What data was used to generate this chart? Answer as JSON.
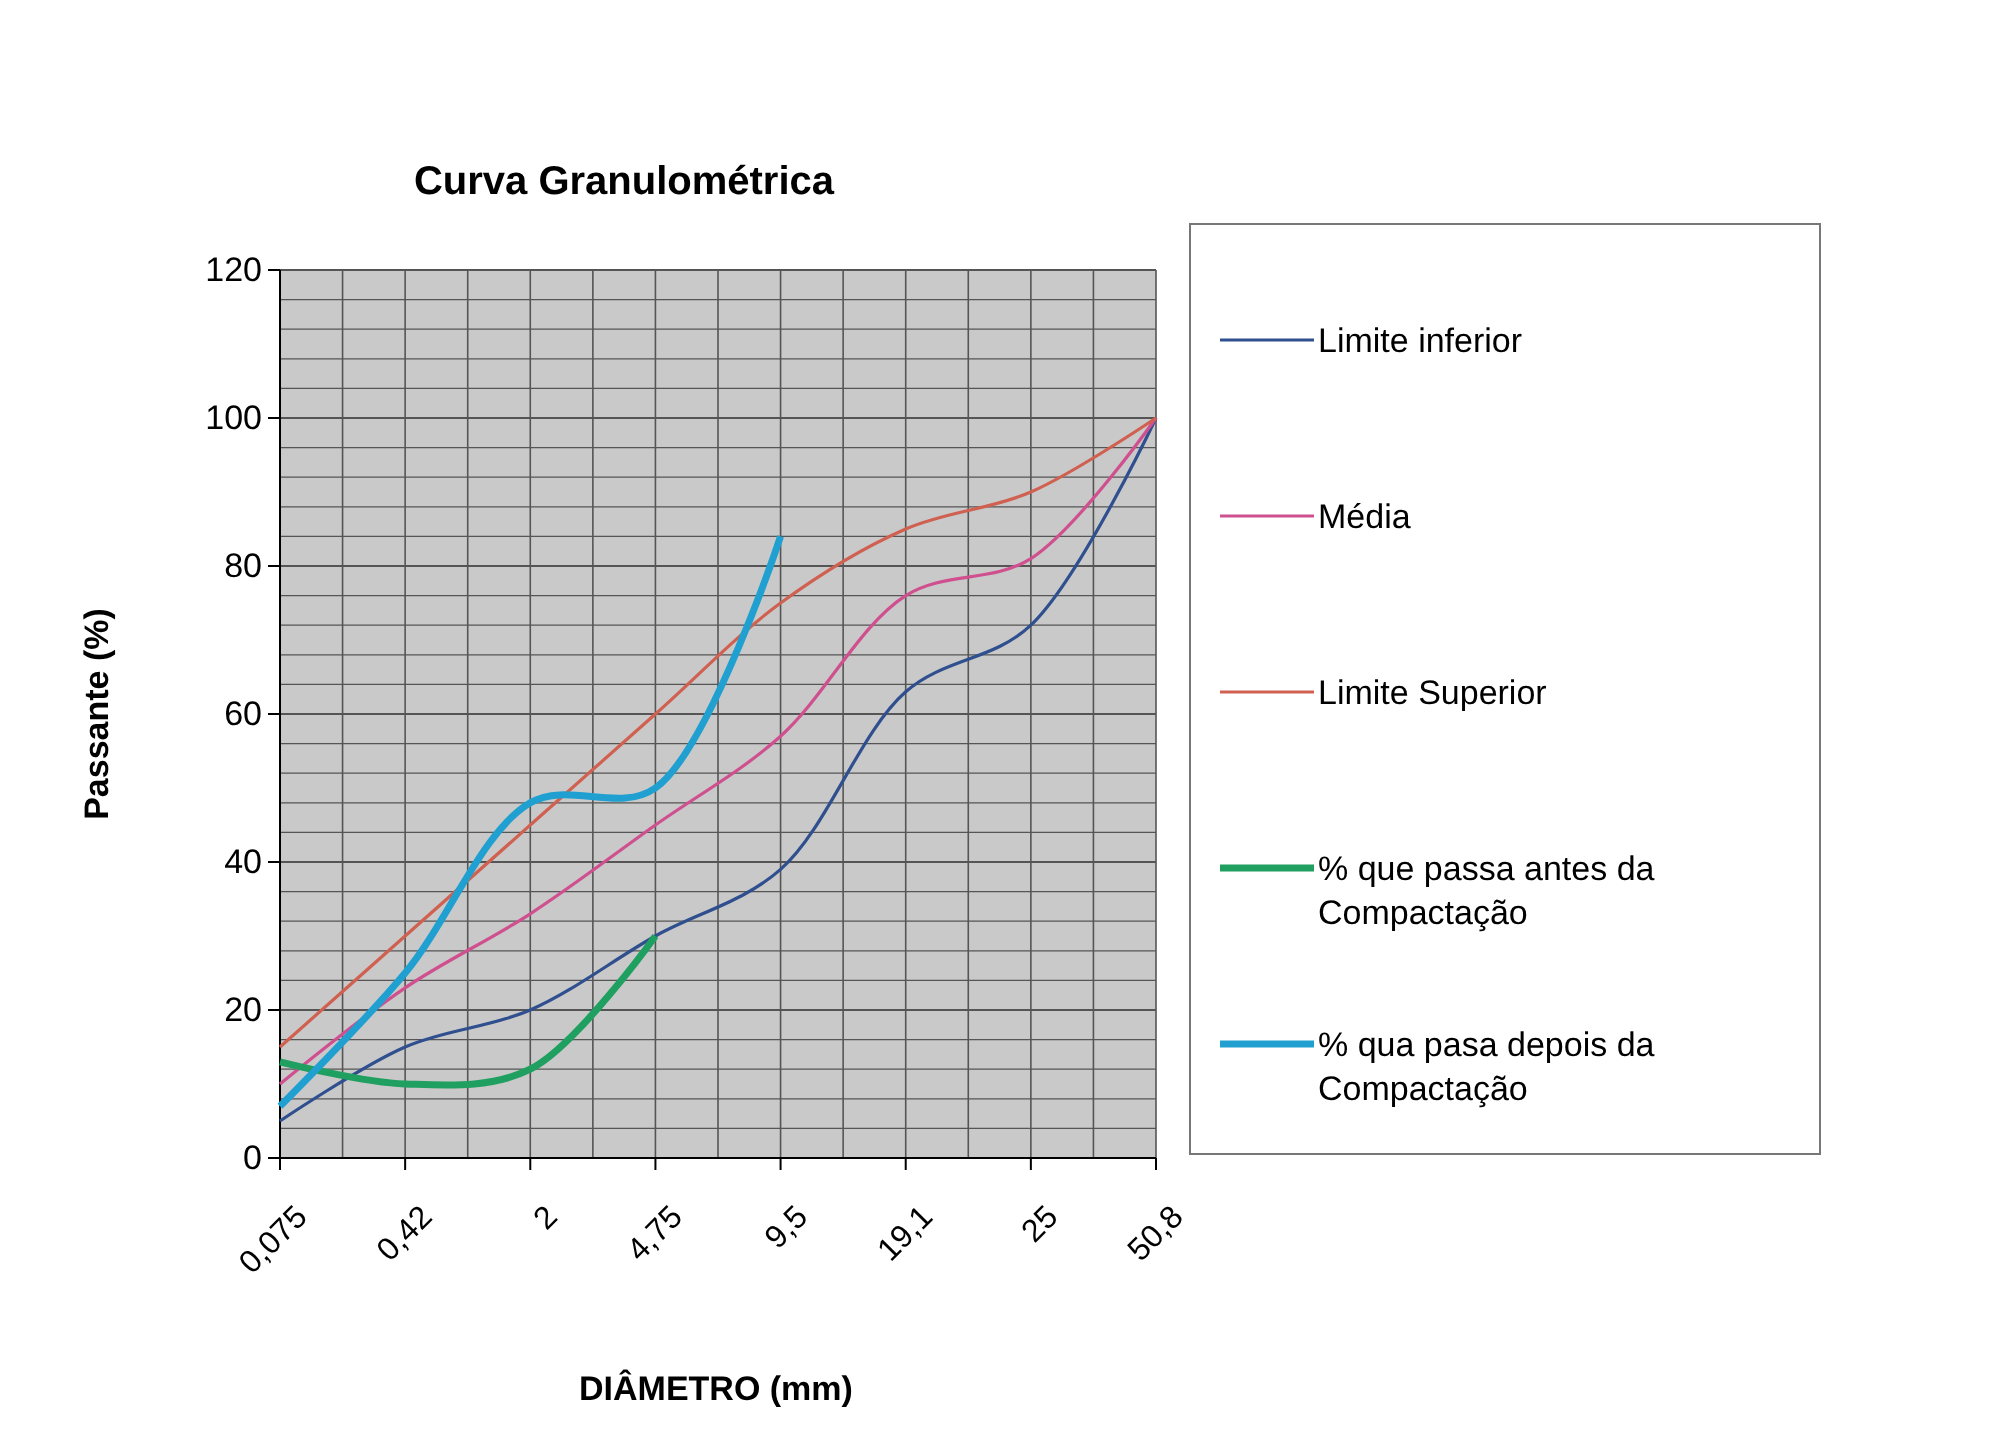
{
  "chart_data": {
    "type": "line",
    "title": "Curva Granulométrica",
    "xlabel": "DIÂMETRO (mm)",
    "ylabel": "Passante (%)",
    "categories": [
      "0,075",
      "0,42",
      "2",
      "4,75",
      "9,5",
      "19,1",
      "25",
      "50,8"
    ],
    "ylim": [
      0,
      120
    ],
    "yticks": [
      0,
      20,
      40,
      60,
      80,
      100,
      120
    ],
    "grid": true,
    "legend": "right",
    "marker": "none",
    "line_style": "solid",
    "series": [
      {
        "name": "Limite inferior",
        "color": "#2f4f8f",
        "values": [
          5,
          15,
          20,
          30,
          39,
          63,
          72,
          100
        ]
      },
      {
        "name": "Média",
        "color": "#d0508f",
        "values": [
          10,
          23,
          33,
          45,
          57,
          76,
          81,
          100
        ]
      },
      {
        "name": "Limite Superior",
        "color": "#d06050",
        "values": [
          15,
          30,
          45,
          60,
          75,
          85,
          90,
          100
        ]
      },
      {
        "name": "% que passa antes da Compactação",
        "color": "#20a060",
        "values": [
          13,
          10,
          12,
          30,
          null,
          null,
          null,
          null
        ]
      },
      {
        "name": "% qua pasa depois da Compactação",
        "color": "#20a0d0",
        "values": [
          7,
          25,
          48,
          50,
          84,
          null,
          null,
          null
        ]
      }
    ]
  }
}
